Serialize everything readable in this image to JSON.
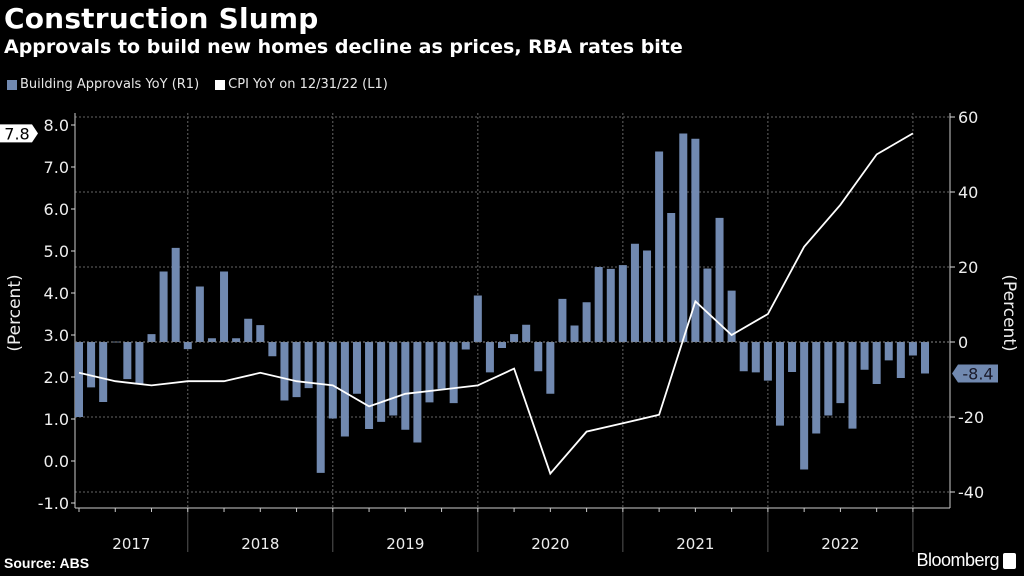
{
  "header": {
    "title": "Construction Slump",
    "subtitle": "Approvals to build new homes decline as prices, RBA rates bite"
  },
  "footer": {
    "source": "Source: ABS",
    "brand": "Bloomberg"
  },
  "chart_data": {
    "type": "bar+line",
    "title": "Construction Slump",
    "subtitle": "Approvals to build new homes decline as prices, RBA rates bite",
    "legend_placement": "top-left",
    "grid": true,
    "colors": {
      "bars": "#7189b0",
      "line": "#ffffff",
      "background": "#000000"
    },
    "left_axis": {
      "label": "(Percent)",
      "ticks": [
        "-1.0",
        "0.0",
        "1.0",
        "2.0",
        "3.0",
        "4.0",
        "5.0",
        "6.0",
        "7.0",
        "8.0"
      ],
      "range": [
        -1.2,
        8.2
      ],
      "callout": "7.8"
    },
    "right_axis": {
      "label": "(Percent)",
      "ticks": [
        "-40",
        "-20",
        "0",
        "20",
        "40",
        "60"
      ],
      "range": [
        -44.5,
        60
      ],
      "callout": "-8.4"
    },
    "x_axis": {
      "year_labels": [
        "2017",
        "2018",
        "2019",
        "2020",
        "2021",
        "2022"
      ]
    },
    "categories": [
      "2017-03",
      "2017-04",
      "2017-05",
      "2017-06",
      "2017-07",
      "2017-08",
      "2017-09",
      "2017-10",
      "2017-11",
      "2017-12",
      "2018-01",
      "2018-02",
      "2018-03",
      "2018-04",
      "2018-05",
      "2018-06",
      "2018-07",
      "2018-08",
      "2018-09",
      "2018-10",
      "2018-11",
      "2018-12",
      "2019-01",
      "2019-02",
      "2019-03",
      "2019-04",
      "2019-05",
      "2019-06",
      "2019-07",
      "2019-08",
      "2019-09",
      "2019-10",
      "2019-11",
      "2019-12",
      "2020-01",
      "2020-02",
      "2020-03",
      "2020-04",
      "2020-05",
      "2020-06",
      "2020-07",
      "2020-08",
      "2020-09",
      "2020-10",
      "2020-11",
      "2020-12",
      "2021-01",
      "2021-02",
      "2021-03",
      "2021-04",
      "2021-05",
      "2021-06",
      "2021-07",
      "2021-08",
      "2021-09",
      "2021-10",
      "2021-11",
      "2021-12",
      "2022-01",
      "2022-02",
      "2022-03",
      "2022-04",
      "2022-05",
      "2022-06",
      "2022-07",
      "2022-08",
      "2022-09",
      "2022-10",
      "2022-11",
      "2022-12",
      "2023-01"
    ],
    "series": [
      {
        "name": "Building Approvals YoY (R1)",
        "type": "bar",
        "axis": "right",
        "values": [
          -20.0,
          -12.1,
          -16.0,
          0.1,
          -9.9,
          -11.1,
          2.1,
          18.8,
          25.1,
          -1.9,
          14.8,
          1.0,
          18.8,
          1.0,
          6.2,
          4.5,
          -3.8,
          -15.6,
          -14.7,
          -12.3,
          -34.9,
          -20.4,
          -25.2,
          -13.8,
          -23.2,
          -21.3,
          -19.6,
          -23.4,
          -26.8,
          -16.1,
          -12.5,
          -16.3,
          -2.0,
          12.4,
          -8.1,
          -1.6,
          2.1,
          4.6,
          -7.8,
          -13.8,
          11.5,
          4.4,
          10.6,
          20.0,
          19.5,
          20.5,
          26.2,
          24.4,
          50.8,
          34.4,
          55.6,
          54.2,
          19.6,
          33.1,
          13.7,
          -7.8,
          -8.1,
          -10.3,
          -22.3,
          -8.0,
          -34.0,
          -24.4,
          -19.6,
          -16.3,
          -23.1,
          -7.4,
          -11.2,
          -4.9,
          -9.6,
          -3.6,
          -8.4
        ]
      },
      {
        "name": "CPI YoY on 12/31/22 (L1)",
        "type": "line",
        "axis": "left",
        "x": [
          "2017-03",
          "2017-06",
          "2017-09",
          "2017-12",
          "2018-03",
          "2018-06",
          "2018-09",
          "2018-12",
          "2019-03",
          "2019-06",
          "2019-09",
          "2019-12",
          "2020-03",
          "2020-06",
          "2020-09",
          "2020-12",
          "2021-03",
          "2021-06",
          "2021-09",
          "2021-12",
          "2022-03",
          "2022-06",
          "2022-09",
          "2022-12"
        ],
        "values": [
          2.1,
          1.9,
          1.8,
          1.9,
          1.9,
          2.1,
          1.9,
          1.8,
          1.3,
          1.6,
          1.7,
          1.8,
          2.2,
          -0.3,
          0.7,
          0.9,
          1.1,
          3.8,
          3.0,
          3.5,
          5.1,
          6.1,
          7.3,
          7.8
        ]
      }
    ]
  }
}
